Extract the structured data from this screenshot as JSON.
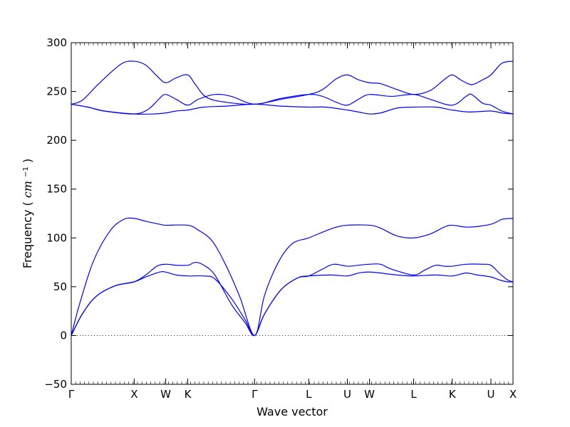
{
  "chart_data": {
    "type": "line",
    "xlabel": "Wave vector",
    "ylabel": "Frequency",
    "ylabel_unit": "cm",
    "ylabel_unit_exp": "−1",
    "ylim": [
      -50,
      300
    ],
    "yticks": [
      -50,
      0,
      50,
      100,
      150,
      200,
      250,
      300
    ],
    "xlim": [
      0,
      800
    ],
    "high_symmetry_points": [
      {
        "label": "Γ",
        "x": 0
      },
      {
        "label": "X",
        "x": 114
      },
      {
        "label": "W",
        "x": 171
      },
      {
        "label": "K",
        "x": 211
      },
      {
        "label": "Γ",
        "x": 332
      },
      {
        "label": "L",
        "x": 430
      },
      {
        "label": "U",
        "x": 500
      },
      {
        "label": "W",
        "x": 540
      },
      {
        "label": "L",
        "x": 620
      },
      {
        "label": "K",
        "x": 690
      },
      {
        "label": "U",
        "x": 760
      },
      {
        "label": "X",
        "x": 800
      }
    ],
    "zero_line": 0,
    "line_color": "#0000ff",
    "series": [
      {
        "values": [
          [
            0,
            0
          ],
          [
            20,
            22
          ],
          [
            45,
            40
          ],
          [
            80,
            51
          ],
          [
            114,
            55
          ],
          [
            135,
            60
          ],
          [
            160,
            65
          ],
          [
            171,
            65
          ],
          [
            190,
            62
          ],
          [
            211,
            61
          ],
          [
            240,
            61
          ],
          [
            260,
            58
          ],
          [
            290,
            38
          ],
          [
            315,
            16
          ],
          [
            332,
            0
          ],
          [
            350,
            22
          ],
          [
            380,
            47
          ],
          [
            410,
            59
          ],
          [
            430,
            61
          ],
          [
            470,
            62
          ],
          [
            500,
            61
          ],
          [
            520,
            64
          ],
          [
            540,
            65
          ],
          [
            560,
            64
          ],
          [
            590,
            62
          ],
          [
            620,
            61
          ],
          [
            660,
            62
          ],
          [
            690,
            61
          ],
          [
            715,
            64
          ],
          [
            735,
            62
          ],
          [
            760,
            60
          ],
          [
            775,
            57
          ],
          [
            790,
            55
          ],
          [
            800,
            55
          ]
        ]
      },
      {
        "values": [
          [
            0,
            0
          ],
          [
            20,
            22
          ],
          [
            45,
            40
          ],
          [
            80,
            51
          ],
          [
            114,
            55
          ],
          [
            135,
            62
          ],
          [
            155,
            71
          ],
          [
            171,
            73
          ],
          [
            190,
            72
          ],
          [
            211,
            72
          ],
          [
            225,
            75
          ],
          [
            240,
            72
          ],
          [
            260,
            62
          ],
          [
            290,
            32
          ],
          [
            315,
            13
          ],
          [
            332,
            0
          ],
          [
            350,
            22
          ],
          [
            380,
            47
          ],
          [
            410,
            59
          ],
          [
            430,
            61
          ],
          [
            455,
            68
          ],
          [
            475,
            73
          ],
          [
            500,
            71
          ],
          [
            520,
            72
          ],
          [
            540,
            73
          ],
          [
            560,
            73
          ],
          [
            580,
            68
          ],
          [
            620,
            62
          ],
          [
            640,
            67
          ],
          [
            660,
            72
          ],
          [
            675,
            71
          ],
          [
            690,
            71
          ],
          [
            715,
            73
          ],
          [
            745,
            73
          ],
          [
            760,
            72
          ],
          [
            775,
            64
          ],
          [
            790,
            57
          ],
          [
            800,
            55
          ]
        ]
      },
      {
        "values": [
          [
            0,
            0
          ],
          [
            15,
            32
          ],
          [
            40,
            76
          ],
          [
            70,
            107
          ],
          [
            95,
            119
          ],
          [
            114,
            120
          ],
          [
            135,
            117
          ],
          [
            160,
            114
          ],
          [
            171,
            113
          ],
          [
            211,
            113
          ],
          [
            230,
            108
          ],
          [
            255,
            97
          ],
          [
            280,
            72
          ],
          [
            305,
            40
          ],
          [
            332,
            0
          ],
          [
            350,
            41
          ],
          [
            375,
            75
          ],
          [
            400,
            94
          ],
          [
            430,
            100
          ],
          [
            460,
            107
          ],
          [
            480,
            111
          ],
          [
            500,
            113
          ],
          [
            540,
            113
          ],
          [
            560,
            110
          ],
          [
            590,
            102
          ],
          [
            620,
            100
          ],
          [
            650,
            104
          ],
          [
            675,
            111
          ],
          [
            690,
            113
          ],
          [
            720,
            111
          ],
          [
            760,
            114
          ],
          [
            780,
            119
          ],
          [
            800,
            120
          ]
        ]
      },
      {
        "values": [
          [
            0,
            237
          ],
          [
            30,
            234
          ],
          [
            60,
            230
          ],
          [
            114,
            227
          ],
          [
            150,
            227
          ],
          [
            171,
            228
          ],
          [
            190,
            230
          ],
          [
            211,
            231
          ],
          [
            240,
            234
          ],
          [
            280,
            235
          ],
          [
            332,
            237
          ],
          [
            380,
            235
          ],
          [
            430,
            234
          ],
          [
            460,
            234
          ],
          [
            500,
            231
          ],
          [
            520,
            229
          ],
          [
            540,
            227
          ],
          [
            560,
            228
          ],
          [
            590,
            233
          ],
          [
            620,
            234
          ],
          [
            660,
            234
          ],
          [
            690,
            231
          ],
          [
            720,
            229
          ],
          [
            760,
            230
          ],
          [
            780,
            228
          ],
          [
            800,
            227
          ]
        ]
      },
      {
        "values": [
          [
            0,
            237
          ],
          [
            30,
            234
          ],
          [
            60,
            230
          ],
          [
            114,
            227
          ],
          [
            140,
            232
          ],
          [
            160,
            243
          ],
          [
            171,
            247
          ],
          [
            190,
            242
          ],
          [
            211,
            236
          ],
          [
            230,
            242
          ],
          [
            260,
            247
          ],
          [
            290,
            245
          ],
          [
            332,
            237
          ],
          [
            380,
            243
          ],
          [
            430,
            247
          ],
          [
            455,
            245
          ],
          [
            480,
            239
          ],
          [
            500,
            236
          ],
          [
            520,
            242
          ],
          [
            540,
            247
          ],
          [
            580,
            245
          ],
          [
            620,
            247
          ],
          [
            650,
            242
          ],
          [
            690,
            236
          ],
          [
            715,
            245
          ],
          [
            725,
            247
          ],
          [
            745,
            238
          ],
          [
            760,
            236
          ],
          [
            780,
            230
          ],
          [
            800,
            227
          ]
        ]
      },
      {
        "values": [
          [
            0,
            237
          ],
          [
            20,
            241
          ],
          [
            50,
            258
          ],
          [
            90,
            278
          ],
          [
            114,
            281
          ],
          [
            135,
            277
          ],
          [
            155,
            266
          ],
          [
            171,
            259
          ],
          [
            190,
            264
          ],
          [
            211,
            267
          ],
          [
            225,
            257
          ],
          [
            245,
            244
          ],
          [
            280,
            239
          ],
          [
            332,
            237
          ],
          [
            380,
            242
          ],
          [
            430,
            247
          ],
          [
            455,
            252
          ],
          [
            480,
            263
          ],
          [
            500,
            267
          ],
          [
            520,
            262
          ],
          [
            540,
            259
          ],
          [
            560,
            258
          ],
          [
            590,
            252
          ],
          [
            620,
            247
          ],
          [
            650,
            251
          ],
          [
            675,
            262
          ],
          [
            690,
            267
          ],
          [
            705,
            262
          ],
          [
            725,
            257
          ],
          [
            745,
            262
          ],
          [
            760,
            267
          ],
          [
            780,
            279
          ],
          [
            800,
            281
          ]
        ]
      }
    ]
  }
}
